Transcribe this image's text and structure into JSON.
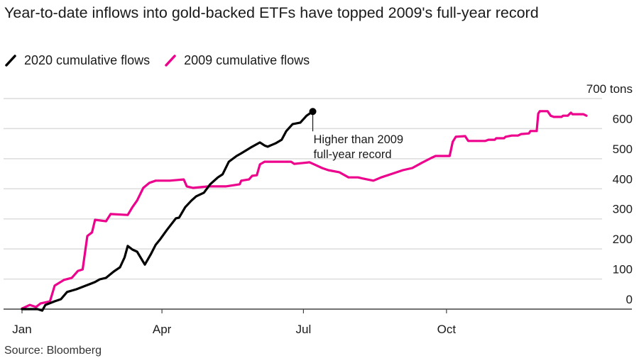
{
  "chart_data": {
    "type": "line",
    "title": "Year-to-date inflows into gold-backed ETFs have topped 2009's full-year record",
    "xlabel": "",
    "ylabel": "tons",
    "x_unit": "day of year",
    "xlim": [
      0,
      365
    ],
    "ylim": [
      0,
      700
    ],
    "grid": true,
    "legend_placement": "top-left",
    "x_ticks": [
      {
        "label": "Jan",
        "day": 0
      },
      {
        "label": "Apr",
        "day": 90
      },
      {
        "label": "Jul",
        "day": 181
      },
      {
        "label": "Oct",
        "day": 273
      }
    ],
    "y_ticks": [
      {
        "label": "700 tons",
        "value": 700
      },
      {
        "label": "600",
        "value": 600
      },
      {
        "label": "500",
        "value": 500
      },
      {
        "label": "400",
        "value": 400
      },
      {
        "label": "300",
        "value": 300
      },
      {
        "label": "200",
        "value": 200
      },
      {
        "label": "100",
        "value": 100
      },
      {
        "label": "0",
        "value": 0
      }
    ],
    "series": [
      {
        "name": "2009 cumulative flows",
        "color": "#ec008c",
        "points": [
          [
            0,
            2
          ],
          [
            5,
            14
          ],
          [
            9,
            7
          ],
          [
            12,
            19
          ],
          [
            18,
            26
          ],
          [
            21,
            78
          ],
          [
            27,
            97
          ],
          [
            32,
            104
          ],
          [
            36,
            127
          ],
          [
            39,
            132
          ],
          [
            42,
            243
          ],
          [
            45,
            255
          ],
          [
            47,
            297
          ],
          [
            54,
            292
          ],
          [
            57,
            316
          ],
          [
            68,
            313
          ],
          [
            71,
            339
          ],
          [
            74,
            361
          ],
          [
            78,
            403
          ],
          [
            82,
            420
          ],
          [
            86,
            427
          ],
          [
            95,
            427
          ],
          [
            104,
            431
          ],
          [
            106,
            408
          ],
          [
            110,
            403
          ],
          [
            120,
            408
          ],
          [
            131,
            408
          ],
          [
            140,
            415
          ],
          [
            141,
            427
          ],
          [
            146,
            431
          ],
          [
            148,
            443
          ],
          [
            151,
            445
          ],
          [
            153,
            481
          ],
          [
            156,
            490
          ],
          [
            173,
            490
          ],
          [
            175,
            483
          ],
          [
            181,
            486
          ],
          [
            185,
            488
          ],
          [
            188,
            481
          ],
          [
            193,
            469
          ],
          [
            197,
            462
          ],
          [
            204,
            455
          ],
          [
            210,
            438
          ],
          [
            216,
            438
          ],
          [
            222,
            431
          ],
          [
            226,
            427
          ],
          [
            231,
            438
          ],
          [
            238,
            450
          ],
          [
            245,
            462
          ],
          [
            251,
            469
          ],
          [
            257,
            486
          ],
          [
            263,
            502
          ],
          [
            266,
            509
          ],
          [
            275,
            509
          ],
          [
            277,
            556
          ],
          [
            279,
            573
          ],
          [
            285,
            575
          ],
          [
            287,
            559
          ],
          [
            298,
            559
          ],
          [
            300,
            563
          ],
          [
            304,
            563
          ],
          [
            305,
            568
          ],
          [
            310,
            568
          ],
          [
            311,
            573
          ],
          [
            315,
            577
          ],
          [
            319,
            577
          ],
          [
            321,
            582
          ],
          [
            326,
            584
          ],
          [
            327,
            592
          ],
          [
            331,
            592
          ],
          [
            332,
            650
          ],
          [
            333,
            658
          ],
          [
            338,
            658
          ],
          [
            340,
            643
          ],
          [
            342,
            639
          ],
          [
            347,
            639
          ],
          [
            348,
            643
          ],
          [
            351,
            643
          ],
          [
            353,
            653
          ],
          [
            354,
            648
          ],
          [
            361,
            648
          ],
          [
            363,
            643
          ]
        ]
      },
      {
        "name": "2020 cumulative flows",
        "color": "#000000",
        "points": [
          [
            0,
            0
          ],
          [
            10,
            0
          ],
          [
            13,
            -5
          ],
          [
            15,
            14
          ],
          [
            21,
            26
          ],
          [
            25,
            33
          ],
          [
            29,
            57
          ],
          [
            35,
            66
          ],
          [
            41,
            78
          ],
          [
            47,
            90
          ],
          [
            50,
            99
          ],
          [
            54,
            104
          ],
          [
            59,
            125
          ],
          [
            63,
            139
          ],
          [
            66,
            172
          ],
          [
            68,
            210
          ],
          [
            71,
            198
          ],
          [
            74,
            191
          ],
          [
            79,
            148
          ],
          [
            83,
            184
          ],
          [
            86,
            214
          ],
          [
            89,
            233
          ],
          [
            93,
            262
          ],
          [
            99,
            302
          ],
          [
            101,
            304
          ],
          [
            105,
            339
          ],
          [
            109,
            361
          ],
          [
            112,
            375
          ],
          [
            117,
            387
          ],
          [
            121,
            415
          ],
          [
            126,
            438
          ],
          [
            129,
            448
          ],
          [
            133,
            490
          ],
          [
            138,
            509
          ],
          [
            141,
            518
          ],
          [
            147,
            537
          ],
          [
            153,
            554
          ],
          [
            156,
            544
          ],
          [
            158,
            540
          ],
          [
            163,
            551
          ],
          [
            167,
            563
          ],
          [
            170,
            592
          ],
          [
            174,
            615
          ],
          [
            179,
            620
          ],
          [
            183,
            643
          ],
          [
            187,
            657
          ]
        ]
      }
    ],
    "annotation": {
      "lines": [
        "Higher than 2009",
        "full-year record"
      ],
      "series": "2020 cumulative flows",
      "point": [
        187,
        657
      ]
    }
  },
  "legend": [
    {
      "label": "2020 cumulative flows",
      "color": "#000000",
      "icon": "slash-line-icon"
    },
    {
      "label": "2009 cumulative flows",
      "color": "#ec008c",
      "icon": "slash-line-icon"
    }
  ],
  "source": "Source: Bloomberg"
}
